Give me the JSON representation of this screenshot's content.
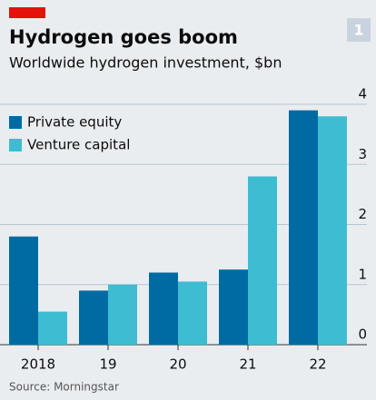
{
  "chart_data": {
    "type": "bar",
    "title": "Hydrogen goes boom",
    "subtitle": "Worldwide hydrogen investment, $bn",
    "badge": "1",
    "source": "Source: Morningstar",
    "categories": [
      "2018",
      "19",
      "20",
      "21",
      "22"
    ],
    "series": [
      {
        "name": "Private equity",
        "color": "#006ba2",
        "values": [
          1.8,
          0.9,
          1.2,
          1.25,
          3.9
        ]
      },
      {
        "name": "Venture capital",
        "color": "#3ebcd2",
        "values": [
          0.55,
          1.0,
          1.05,
          2.8,
          3.8
        ]
      }
    ],
    "ylim": [
      0,
      4
    ],
    "yticks": [
      0,
      1,
      2,
      3,
      4
    ],
    "grid": true,
    "legend": "top-left"
  }
}
